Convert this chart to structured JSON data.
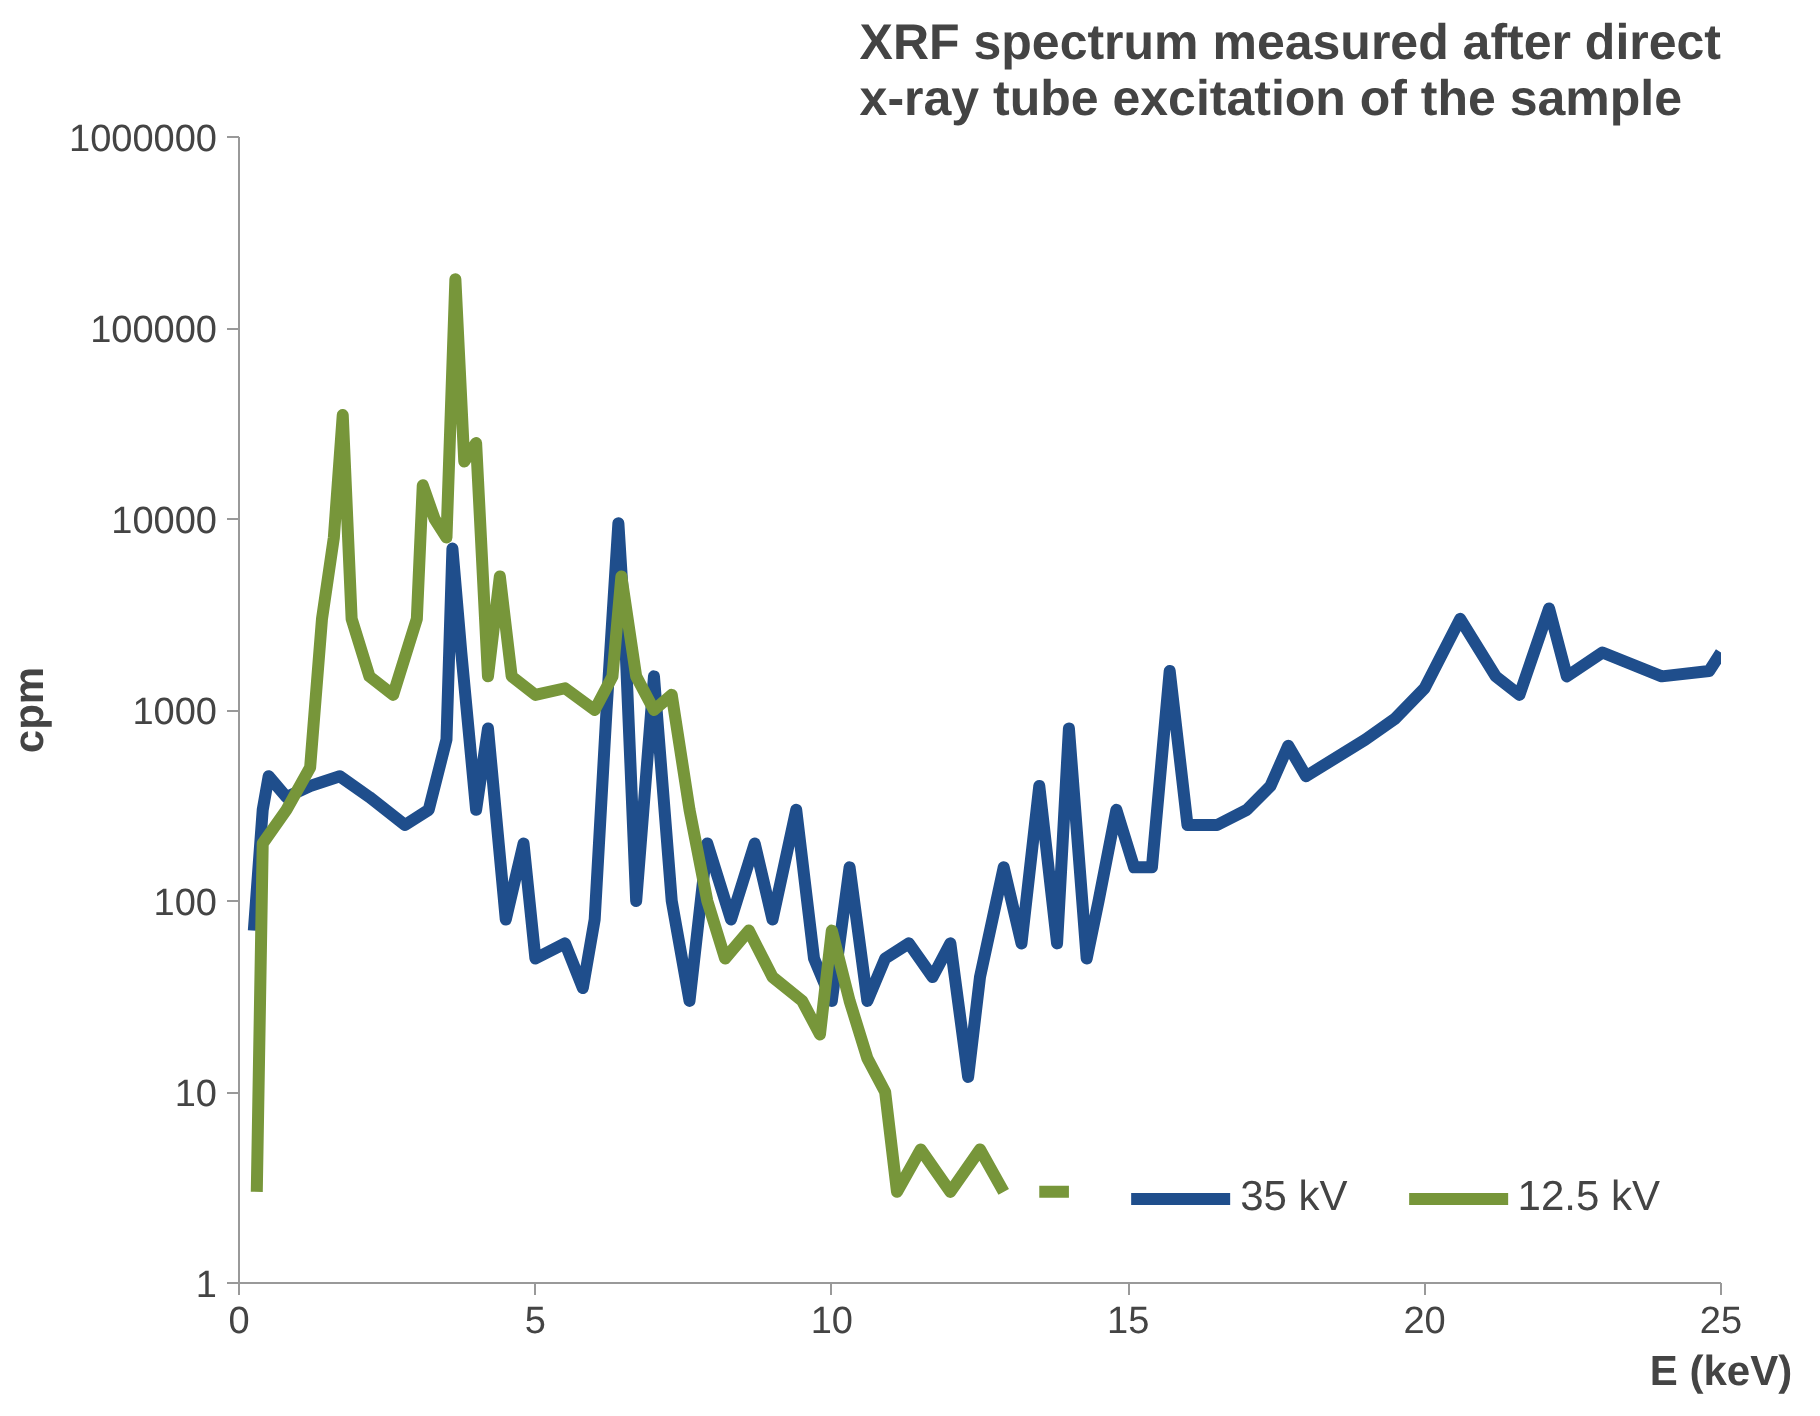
{
  "chart_data": {
    "type": "line",
    "title": "XRF spectrum measured after direct\nx-ray tube excitation of the sample",
    "xlabel": "E (keV)",
    "ylabel": "cpm",
    "log": "y",
    "xlim": [
      0,
      25
    ],
    "xticks": [
      0,
      5,
      10,
      15,
      20,
      25
    ],
    "ylim": [
      1,
      1000000
    ],
    "yticks": [
      1,
      10,
      100,
      1000,
      10000,
      100000,
      1000000
    ],
    "grid": false,
    "legend": "bottom right",
    "marker": "none",
    "line_style": "solid",
    "series": [
      {
        "name": "35 kV",
        "color": "#1f4e8c",
        "x": [
          0.25,
          0.4,
          0.5,
          0.8,
          1.2,
          1.7,
          2.2,
          2.8,
          3.2,
          3.5,
          3.6,
          3.75,
          4.0,
          4.2,
          4.5,
          4.8,
          5.0,
          5.5,
          5.8,
          6.0,
          6.2,
          6.4,
          6.5,
          6.7,
          7.0,
          7.3,
          7.6,
          7.9,
          8.3,
          8.7,
          9.0,
          9.4,
          9.7,
          10.0,
          10.3,
          10.6,
          10.9,
          11.3,
          11.7,
          12.0,
          12.3,
          12.5,
          12.9,
          13.2,
          13.5,
          13.8,
          14.0,
          14.3,
          14.5,
          14.8,
          15.1,
          15.4,
          15.7,
          16.0,
          16.5,
          17.0,
          17.4,
          17.7,
          18.0,
          19.0,
          19.5,
          20.0,
          20.6,
          21.2,
          21.6,
          22.1,
          22.4,
          23.0,
          24.0,
          24.8,
          25.0
        ],
        "values": [
          70,
          300,
          450,
          350,
          400,
          450,
          350,
          250,
          300,
          700,
          7000,
          2000,
          300,
          800,
          80,
          200,
          50,
          60,
          35,
          80,
          1000,
          9500,
          3000,
          100,
          1500,
          100,
          30,
          200,
          80,
          200,
          80,
          300,
          50,
          30,
          150,
          30,
          50,
          60,
          40,
          60,
          12,
          40,
          150,
          60,
          400,
          60,
          800,
          50,
          100,
          300,
          150,
          150,
          1600,
          250,
          250,
          300,
          400,
          650,
          450,
          700,
          900,
          1300,
          3000,
          1500,
          1200,
          3400,
          1500,
          2000,
          1500,
          1600,
          2000
        ]
      },
      {
        "name": "12.5 kV",
        "color": "#77963a",
        "x": [
          0.3,
          0.4,
          0.8,
          1.2,
          1.4,
          1.6,
          1.75,
          1.9,
          2.2,
          2.6,
          3.0,
          3.1,
          3.3,
          3.5,
          3.65,
          3.8,
          4.0,
          4.2,
          4.4,
          4.6,
          5.0,
          5.5,
          6.0,
          6.3,
          6.45,
          6.7,
          7.0,
          7.3,
          7.6,
          7.9,
          8.2,
          8.6,
          9.0,
          9.5,
          9.8,
          10.0,
          10.3,
          10.6,
          10.9,
          11.1,
          11.5,
          12.0,
          12.5,
          12.9,
          13.2,
          13.5,
          14.0
        ],
        "values": [
          3,
          200,
          300,
          500,
          3000,
          8000,
          35000,
          3000,
          1500,
          1200,
          3000,
          15000,
          10000,
          8000,
          180000,
          20000,
          25000,
          1500,
          5000,
          1500,
          1200,
          1300,
          1000,
          1500,
          5000,
          1500,
          1000,
          1200,
          300,
          100,
          50,
          70,
          40,
          30,
          20,
          70,
          30,
          15,
          10,
          3,
          5,
          3,
          5,
          3,
          null,
          3,
          3
        ]
      }
    ]
  }
}
